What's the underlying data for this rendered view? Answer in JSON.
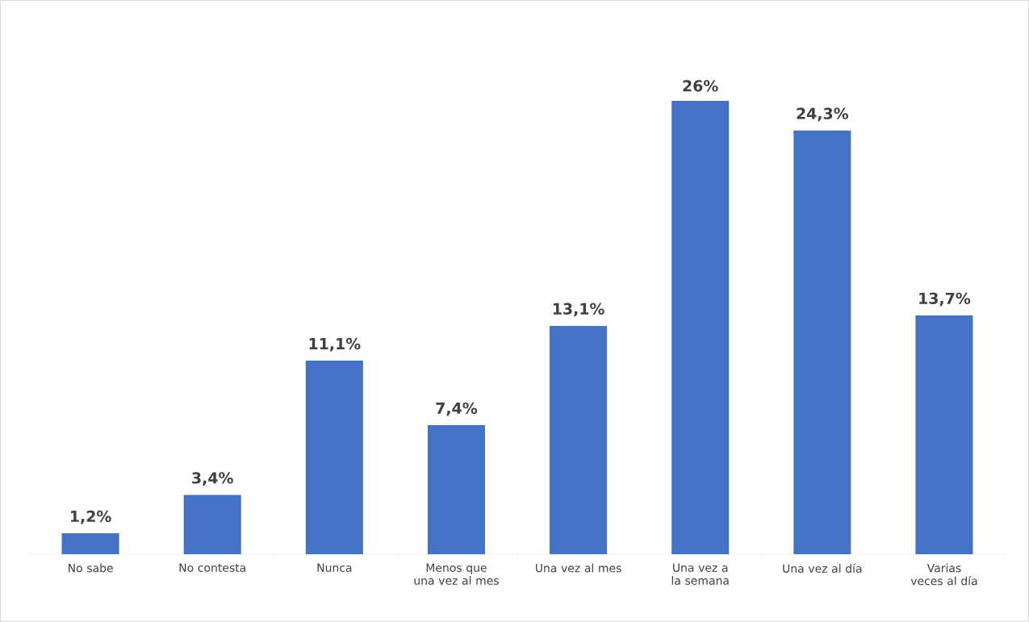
{
  "chart_data": {
    "type": "bar",
    "categories": [
      "No sabe",
      "No contesta",
      "Nunca",
      "Menos que una vez al mes",
      "Una vez al mes",
      "Una vez a la semana",
      "Una vez al día",
      "Varias veces al día"
    ],
    "values": [
      1.2,
      3.4,
      11.1,
      7.4,
      13.1,
      26,
      24.3,
      13.7
    ],
    "value_labels": [
      "1,2%",
      "3,4%",
      "11,1%",
      "7,4%",
      "13,1%",
      "26%",
      "24,3%",
      "13,7%"
    ],
    "color": "#4472c4"
  }
}
